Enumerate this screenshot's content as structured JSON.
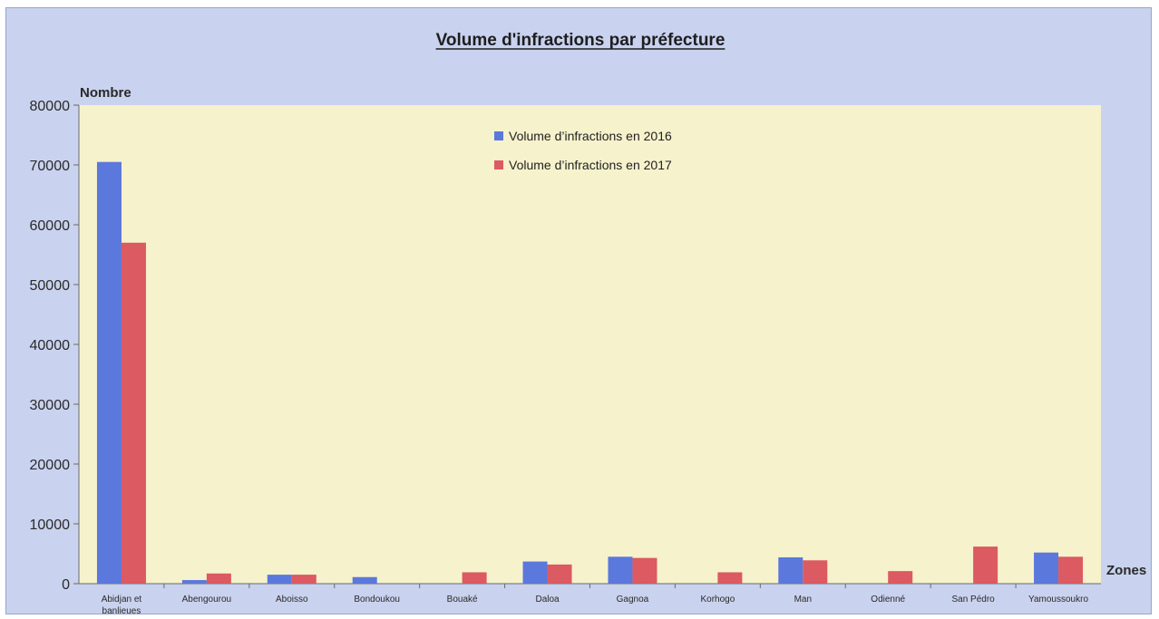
{
  "colors": {
    "series_2016": "#5b78dc",
    "series_2017": "#dc5a61",
    "plot_bg": "#f6f2cc",
    "frame_bg": "#c9d2ee"
  },
  "chart_data": {
    "type": "bar",
    "title": "Volume d'infractions par préfecture",
    "ylabel": "Nombre",
    "xlabel": "Zones",
    "ylim": [
      0,
      80000
    ],
    "yticks": [
      0,
      10000,
      20000,
      30000,
      40000,
      50000,
      60000,
      70000,
      80000
    ],
    "grid": false,
    "legend_position": "top-center",
    "categories": [
      [
        "Abidjan et",
        "banlieues"
      ],
      [
        "Abengourou"
      ],
      [
        "Aboisso"
      ],
      [
        "Bondoukou"
      ],
      [
        "Bouaké"
      ],
      [
        "Daloa"
      ],
      [
        "Gagnoa"
      ],
      [
        "Korhogo"
      ],
      [
        "Man"
      ],
      [
        "Odienné"
      ],
      [
        "San Pédro"
      ],
      [
        "Yamoussoukro"
      ]
    ],
    "series": [
      {
        "name": "Volume d’infractions en 2016",
        "values": [
          70500,
          600,
          1500,
          1100,
          0,
          3700,
          4500,
          0,
          4400,
          0,
          0,
          5200
        ]
      },
      {
        "name": "Volume d’infractions en 2017",
        "values": [
          57000,
          1700,
          1500,
          0,
          1900,
          3200,
          4300,
          1900,
          3900,
          2100,
          6200,
          4500
        ]
      }
    ]
  }
}
